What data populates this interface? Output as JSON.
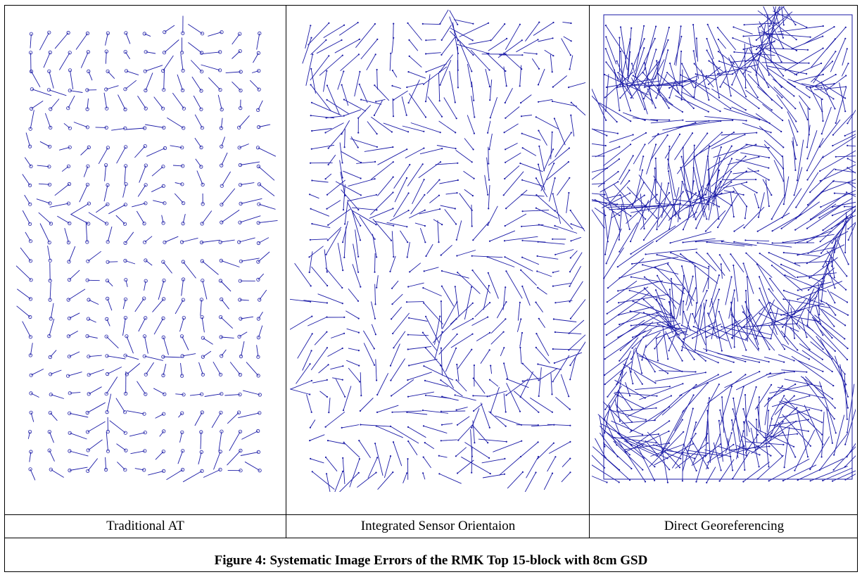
{
  "figure": {
    "caption": "Figure 4: Systematic Image Errors of the RMK Top 15-block with 8cm GSD",
    "vector_color": "#1a1aa6"
  },
  "panels": [
    {
      "label": "Traditional AT"
    },
    {
      "label": "Integrated Sensor Orientaion"
    },
    {
      "label": "Direct Georeferencing"
    }
  ]
}
